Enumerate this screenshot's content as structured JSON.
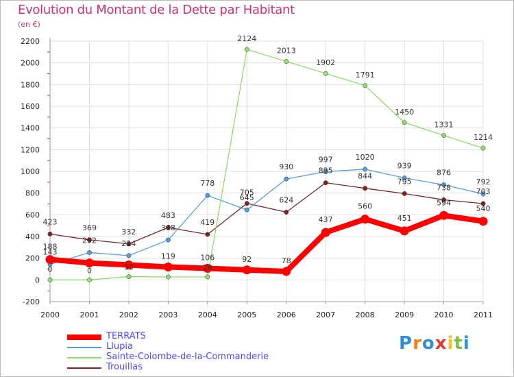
{
  "title": "Evolution du Montant de la Dette par Habitant",
  "subtitle": "(en €)",
  "logo": {
    "text": "Proxiti",
    "colors": [
      "#2f8fd6",
      "#f07d1a",
      "#2f8fd6",
      "#e43b2f",
      "#f4c21b",
      "#7cbf3c",
      "#2f8fd6"
    ]
  },
  "chart_data": {
    "type": "line",
    "x": [
      "2000",
      "2001",
      "2002",
      "2003",
      "2004",
      "2005",
      "2006",
      "2007",
      "2008",
      "2009",
      "2010",
      "2011"
    ],
    "ylim": [
      -200,
      2200
    ],
    "yticks": [
      "-200",
      "0",
      "200",
      "400",
      "600",
      "800",
      "1000",
      "1200",
      "1400",
      "1600",
      "1800",
      "2000",
      "2200"
    ],
    "grid": true,
    "legend": "bottom-left",
    "series": [
      {
        "name": "TERRATS",
        "color": "#ff0000",
        "values": [
          188,
          156,
          138,
          119,
          106,
          92,
          78,
          437,
          560,
          451,
          594,
          540
        ],
        "labels": [
          "188",
          "",
          "",
          "119",
          "106",
          "92",
          "78",
          "437",
          "560",
          "451",
          "594",
          "540"
        ]
      },
      {
        "name": "Llupia",
        "color": "#5b9bd5",
        "values": [
          143,
          252,
          224,
          368,
          778,
          645,
          930,
          997,
          1020,
          939,
          876,
          792
        ],
        "labels": [
          "143",
          "252",
          "224",
          "368",
          "778",
          "645",
          "930",
          "997",
          "1020",
          "939",
          "876",
          "792"
        ]
      },
      {
        "name": "Sainte-Colombe-de-la-Commanderie",
        "color": "#90dc6c",
        "values": [
          0,
          0,
          30,
          27,
          28,
          2124,
          2013,
          1902,
          1791,
          1450,
          1331,
          1214
        ],
        "labels": [
          "0",
          "0",
          "30",
          "",
          "28",
          "2124",
          "2013",
          "1902",
          "1791",
          "1450",
          "1331",
          "1214"
        ]
      },
      {
        "name": "Trouillas",
        "color": "#7a2525",
        "values": [
          423,
          369,
          332,
          483,
          419,
          705,
          624,
          895,
          844,
          795,
          738,
          703
        ],
        "labels": [
          "423",
          "369",
          "332",
          "483",
          "419",
          "705",
          "624",
          "895",
          "844",
          "795",
          "738",
          "703"
        ]
      }
    ]
  }
}
